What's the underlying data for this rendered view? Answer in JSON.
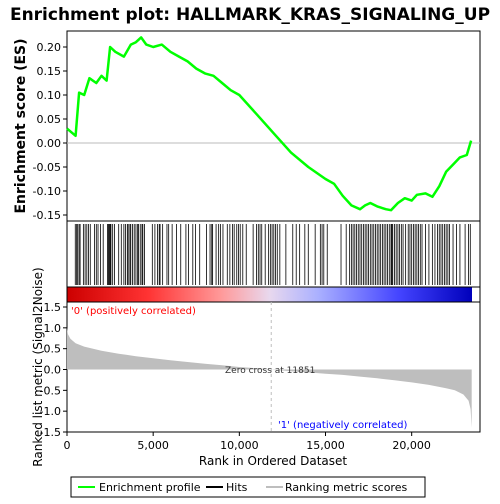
{
  "chart_data": [
    {
      "type": "line",
      "title": "Enrichment plot: HALLMARK_KRAS_SIGNALING_UP",
      "ylabel": "Enrichment score (ES)",
      "xlim": [
        0,
        23500
      ],
      "ylim": [
        -0.16,
        0.24
      ],
      "yticks": [
        "0.20",
        "0.15",
        "0.10",
        "0.05",
        "0.00",
        "-0.05",
        "-0.10",
        "-0.15"
      ],
      "ytick_values": [
        0.2,
        0.15,
        0.1,
        0.05,
        0.0,
        -0.05,
        -0.1,
        -0.15
      ],
      "grid": false,
      "color": "#00ff00",
      "series": [
        {
          "name": "Enrichment profile",
          "x": [
            0,
            500,
            700,
            1000,
            1300,
            1700,
            2000,
            2300,
            2500,
            2800,
            3300,
            3700,
            4000,
            4300,
            4600,
            5000,
            5500,
            6000,
            6500,
            7000,
            7500,
            8000,
            8500,
            9000,
            9500,
            10000,
            11000,
            12000,
            13000,
            14000,
            15000,
            15500,
            16000,
            16500,
            17000,
            17300,
            17600,
            18000,
            18500,
            18800,
            19200,
            19600,
            20000,
            20300,
            20800,
            21200,
            21600,
            22000,
            22400,
            22800,
            23200,
            23450
          ],
          "y": [
            0.03,
            0.015,
            0.105,
            0.1,
            0.135,
            0.125,
            0.14,
            0.13,
            0.2,
            0.19,
            0.18,
            0.205,
            0.21,
            0.22,
            0.205,
            0.2,
            0.205,
            0.19,
            0.18,
            0.17,
            0.155,
            0.145,
            0.14,
            0.125,
            0.11,
            0.1,
            0.06,
            0.02,
            -0.02,
            -0.05,
            -0.075,
            -0.085,
            -0.11,
            -0.13,
            -0.138,
            -0.13,
            -0.125,
            -0.132,
            -0.138,
            -0.14,
            -0.125,
            -0.115,
            -0.12,
            -0.108,
            -0.105,
            -0.112,
            -0.09,
            -0.06,
            -0.045,
            -0.03,
            -0.025,
            0.005
          ]
        }
      ]
    },
    {
      "type": "heatmap",
      "name": "Hits",
      "hits_x": [
        480,
        560,
        620,
        700,
        760,
        950,
        1050,
        1150,
        1250,
        1350,
        1600,
        1700,
        1800,
        1950,
        2100,
        2350,
        2400,
        2450,
        2500,
        2550,
        2650,
        2750,
        3000,
        3150,
        3300,
        3400,
        3500,
        3550,
        3650,
        3700,
        3800,
        3900,
        4000,
        4100,
        4150,
        4250,
        4350,
        4400,
        4500,
        4950,
        5100,
        5250,
        5350,
        5400,
        5550,
        5800,
        5900,
        6100,
        6350,
        6600,
        6900,
        7050,
        7300,
        7450,
        7700,
        8100,
        8300,
        8400,
        8450,
        8650,
        8800,
        8900,
        9050,
        9300,
        9450,
        9600,
        9700,
        9850,
        9950,
        10050,
        10200,
        10400,
        10800,
        11000,
        11100,
        11200,
        11300,
        11500,
        11700,
        11800,
        11900,
        12000,
        12100,
        12200,
        12350,
        12700,
        13100,
        13300,
        13500,
        13800,
        14000,
        14400,
        14700,
        14800,
        14900,
        15100,
        15900,
        16200,
        16400,
        16500,
        16600,
        16700,
        16800,
        16900,
        17000,
        17100,
        17200,
        17300,
        17400,
        17500,
        17600,
        17700,
        17800,
        17900,
        18000,
        18100,
        18200,
        18300,
        18400,
        18500,
        18600,
        18700,
        18800,
        18850,
        18900,
        19000,
        19100,
        19200,
        19300,
        19400,
        19500,
        19650,
        19800,
        19900,
        20000,
        20100,
        20200,
        20300,
        20400,
        20500,
        20600,
        20800,
        21000,
        21200,
        21350,
        21500,
        21600,
        21700,
        21800,
        21900,
        22000,
        22100,
        22200,
        22400,
        22600,
        22800,
        23100,
        23300,
        23400
      ]
    },
    {
      "type": "area",
      "title": "",
      "ylabel": "Ranked list metric (Signal2Noise)",
      "xlabel": "Rank in Ordered Dataset",
      "xlim": [
        0,
        23500
      ],
      "ylim": [
        -1.5,
        1.5
      ],
      "xticks": [
        "0",
        "5,000",
        "10,000",
        "15,000",
        "20,000"
      ],
      "xtick_values": [
        0,
        5000,
        10000,
        15000,
        20000
      ],
      "yticks": [
        "1.5",
        "1.0",
        "0.5",
        "0.0",
        "-0.5",
        "-1.0",
        "-1.5"
      ],
      "ytick_values": [
        1.5,
        1.0,
        0.5,
        0.0,
        -0.5,
        -1.0,
        -1.5
      ],
      "series": [
        {
          "name": "Ranking metric scores",
          "x": [
            0,
            50,
            200,
            500,
            1000,
            2000,
            3000,
            4000,
            5000,
            6000,
            7000,
            8000,
            9000,
            10000,
            11000,
            11851,
            13000,
            14000,
            15000,
            16000,
            17000,
            18000,
            19000,
            20000,
            21000,
            22000,
            22500,
            23000,
            23300,
            23420,
            23480
          ],
          "y": [
            1.0,
            0.85,
            0.74,
            0.63,
            0.55,
            0.45,
            0.38,
            0.32,
            0.27,
            0.22,
            0.18,
            0.14,
            0.1,
            0.06,
            0.03,
            0.0,
            -0.04,
            -0.07,
            -0.1,
            -0.13,
            -0.17,
            -0.21,
            -0.26,
            -0.31,
            -0.37,
            -0.45,
            -0.5,
            -0.6,
            -0.75,
            -0.95,
            -1.4
          ]
        }
      ],
      "annotations": {
        "pos_label": "'0' (positively correlated)",
        "neg_label": "'1' (negatively correlated)",
        "zero_cross": "Zero cross at 11851",
        "zero_cross_x": 11851
      }
    }
  ],
  "legend": {
    "items": [
      {
        "label": "Enrichment profile",
        "color": "#00ff00"
      },
      {
        "label": "Hits",
        "color": "#000000"
      },
      {
        "label": "Ranking metric scores",
        "color": "#bebebe"
      }
    ],
    "placement": "bottom"
  },
  "colors": {
    "profile": "#00ff00",
    "metric_fill": "#bebebe",
    "pos_text": "#ff0000",
    "neg_text": "#0000ff",
    "zero_line": "#bebebe"
  }
}
